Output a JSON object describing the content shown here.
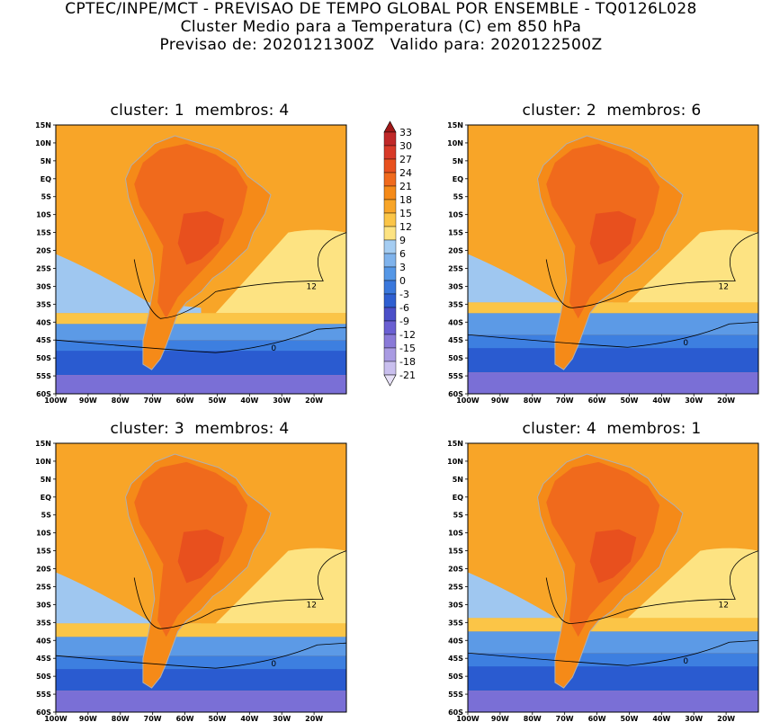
{
  "header": {
    "line1": "CPTEC/INPE/MCT - PREVISAO DE TEMPO GLOBAL POR ENSEMBLE - TQ0126L028",
    "line2": "Cluster Medio para a Temperatura (C) em 850 hPa",
    "line3": "Previsao de: 2020121300Z   Valido para: 2020122500Z"
  },
  "panels": [
    {
      "title": "cluster: 1  membros: 4"
    },
    {
      "title": "cluster: 2  membros: 6"
    },
    {
      "title": "cluster: 3  membros: 4"
    },
    {
      "title": "cluster: 4  membros: 1"
    }
  ],
  "lat_labels": [
    "15N",
    "10N",
    "5N",
    "EQ",
    "5S",
    "10S",
    "15S",
    "20S",
    "25S",
    "30S",
    "35S",
    "40S",
    "45S",
    "50S",
    "55S",
    "60S"
  ],
  "lon_labels": [
    "100W",
    "90W",
    "80W",
    "70W",
    "60W",
    "50W",
    "40W",
    "30W",
    "20W"
  ],
  "contour_labels": [
    "12",
    "0"
  ],
  "colorbar": {
    "labels": [
      "33",
      "30",
      "27",
      "24",
      "21",
      "18",
      "15",
      "12",
      "9",
      "6",
      "3",
      "0",
      "-3",
      "-6",
      "-9",
      "-12",
      "-15",
      "-18",
      "-21"
    ],
    "colors": [
      "#a01818",
      "#c02828",
      "#d83a28",
      "#e8501e",
      "#f06a1c",
      "#f58a18",
      "#f8a528",
      "#fbc547",
      "#fde382",
      "#a5cdf2",
      "#7fb3ec",
      "#5597e6",
      "#3a78dc",
      "#2f5fd1",
      "#4b4fc8",
      "#6a5fd2",
      "#8a7ad8",
      "#a99be2",
      "#c9bfee",
      "#e7e1f7"
    ]
  },
  "colors": {
    "land_outline": "#b0b0b0",
    "contour": "#000000"
  }
}
